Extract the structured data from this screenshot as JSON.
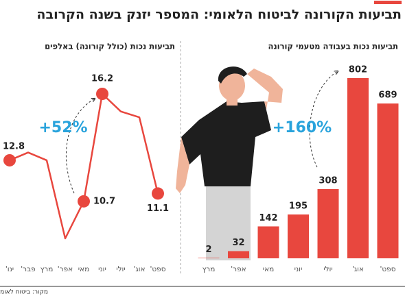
{
  "title": "תביעות הקורונה לביטוח הלאומי: המספר יזנק בשנה הקרובה",
  "source": "מקור: ביטוח לאומי",
  "chart_data": [
    {
      "type": "line",
      "title": "תביעות נכות (כולל קורונה) באלפים",
      "categories": [
        "ינו'",
        "פבר'",
        "מרץ",
        "אפר'",
        "מאי",
        "יוני",
        "יולי",
        "אוג'",
        "ספט'"
      ],
      "values": [
        12.8,
        13.2,
        12.8,
        8.8,
        10.7,
        16.2,
        15.3,
        15.0,
        11.1
      ],
      "value_labels": [
        "12.8",
        null,
        null,
        null,
        "10.7",
        "16.2",
        null,
        null,
        "11.1"
      ],
      "color": "#e8473e",
      "annotation": "+52%"
    },
    {
      "type": "bar",
      "title": "תביעות נכות בעבודה מטעמי קורונה",
      "categories": [
        "מרץ",
        "אפר'",
        "מאי",
        "יוני",
        "יולי",
        "אוג'",
        "ספט'"
      ],
      "values": [
        2,
        32,
        142,
        195,
        308,
        802,
        689
      ],
      "color": "#e8473e",
      "annotation": "+160%"
    }
  ]
}
